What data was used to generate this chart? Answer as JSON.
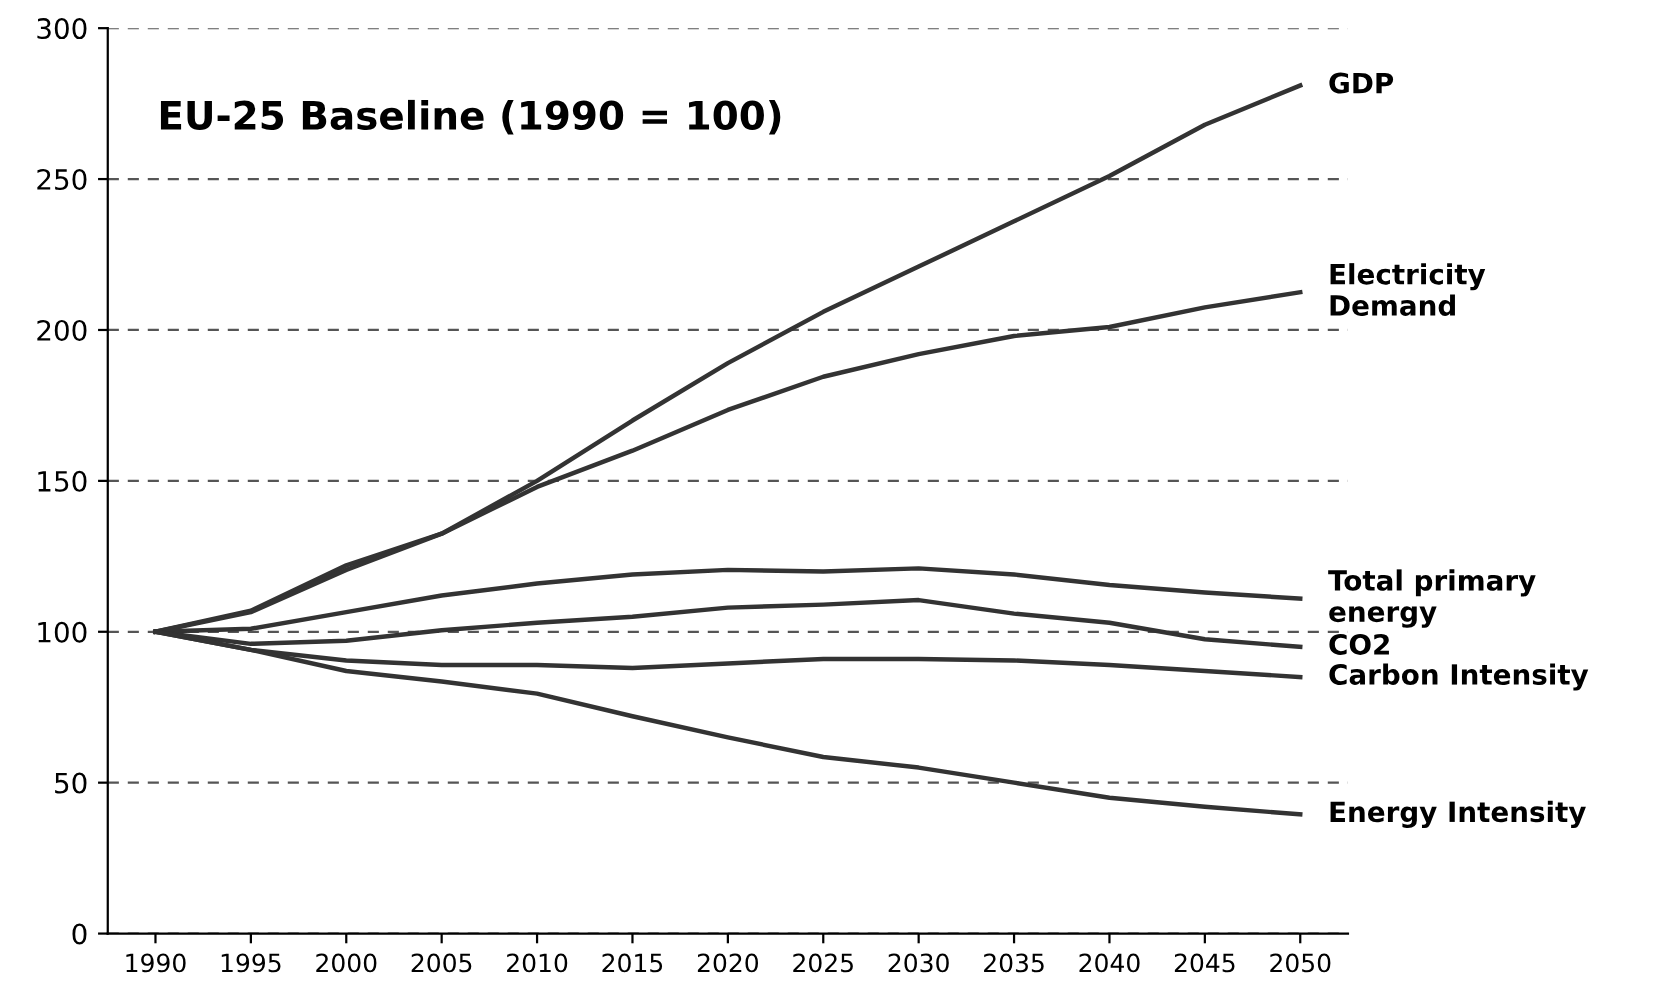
{
  "chart_data": {
    "type": "line",
    "title": "EU-25 Baseline (1990 = 100)",
    "x": [
      1990,
      1995,
      2000,
      2005,
      2010,
      2015,
      2020,
      2025,
      2030,
      2035,
      2040,
      2045,
      2050
    ],
    "series": [
      {
        "name": "GDP",
        "color": "#333333",
        "values": [
          100,
          107,
          122,
          132.5,
          150,
          170,
          189,
          206,
          221,
          236,
          251,
          268,
          281
        ]
      },
      {
        "name": "Electricity\nDemand",
        "color": "#333333",
        "values": [
          100,
          106.5,
          120.5,
          132.5,
          148,
          160,
          173.5,
          184.5,
          192,
          198,
          201,
          207.5,
          212.5
        ]
      },
      {
        "name": "Total primary\nenergy",
        "color": "#333333",
        "values": [
          100,
          101,
          106.5,
          112,
          116,
          119,
          120.5,
          120,
          121,
          119,
          115.5,
          113,
          111
        ]
      },
      {
        "name": "CO2",
        "color": "#333333",
        "values": [
          100,
          96,
          97,
          100.5,
          103,
          105,
          108,
          109,
          110.5,
          106,
          103,
          97.5,
          95
        ]
      },
      {
        "name": "Carbon Intensity",
        "color": "#333333",
        "values": [
          100,
          94,
          90.5,
          89,
          89,
          88,
          89.5,
          91,
          91,
          90.5,
          89,
          87,
          85
        ]
      },
      {
        "name": "Energy Intensity",
        "color": "#333333",
        "values": [
          100,
          94,
          87,
          83.5,
          79.5,
          72,
          65,
          58.5,
          55,
          50,
          45,
          42,
          39.5
        ]
      }
    ],
    "xlim": [
      1987.5,
      2052.5
    ],
    "xticks": [
      1990,
      1995,
      2000,
      2005,
      2010,
      2015,
      2020,
      2025,
      2030,
      2035,
      2040,
      2045,
      2050
    ],
    "ylim": [
      0,
      300
    ],
    "yticks": [
      0,
      50,
      100,
      150,
      200,
      250,
      300
    ],
    "grid": "y",
    "legend": false,
    "marker": "none",
    "line_style": "solid"
  }
}
